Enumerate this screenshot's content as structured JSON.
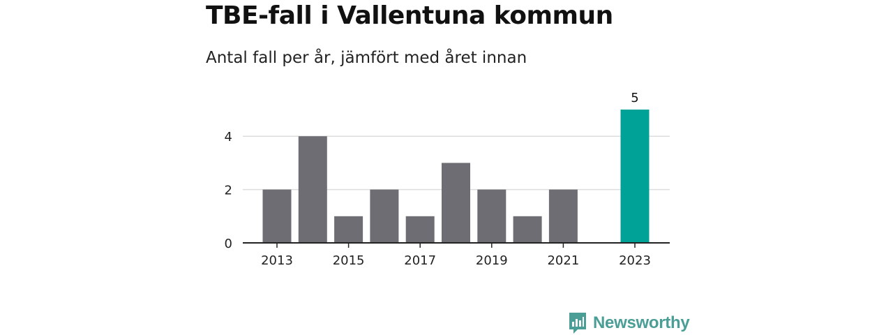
{
  "title": "TBE-fall i Vallentuna kommun",
  "subtitle": "Antal fall per år, jämfört med året innan",
  "brand": {
    "name": "Newsworthy",
    "icon": "newsworthy-logo-icon",
    "color": "#4a9e96"
  },
  "colors": {
    "bar": "#6e6d73",
    "highlight": "#00a298",
    "grid": "#dddddd",
    "axis": "#222222"
  },
  "chart_data": {
    "type": "bar",
    "categories": [
      2013,
      2014,
      2015,
      2016,
      2017,
      2018,
      2019,
      2020,
      2021,
      2022,
      2023
    ],
    "values": [
      2,
      4,
      1,
      2,
      1,
      3,
      2,
      1,
      2,
      0,
      5
    ],
    "highlight_category": 2023,
    "data_labels": [
      {
        "category": 2023,
        "label": "5"
      }
    ],
    "x_tick_labels": [
      "2013",
      "2015",
      "2017",
      "2019",
      "2021",
      "2023"
    ],
    "y_ticks": [
      0,
      2,
      4
    ],
    "ylim": [
      0,
      5
    ],
    "grid": true,
    "legend": "none"
  }
}
